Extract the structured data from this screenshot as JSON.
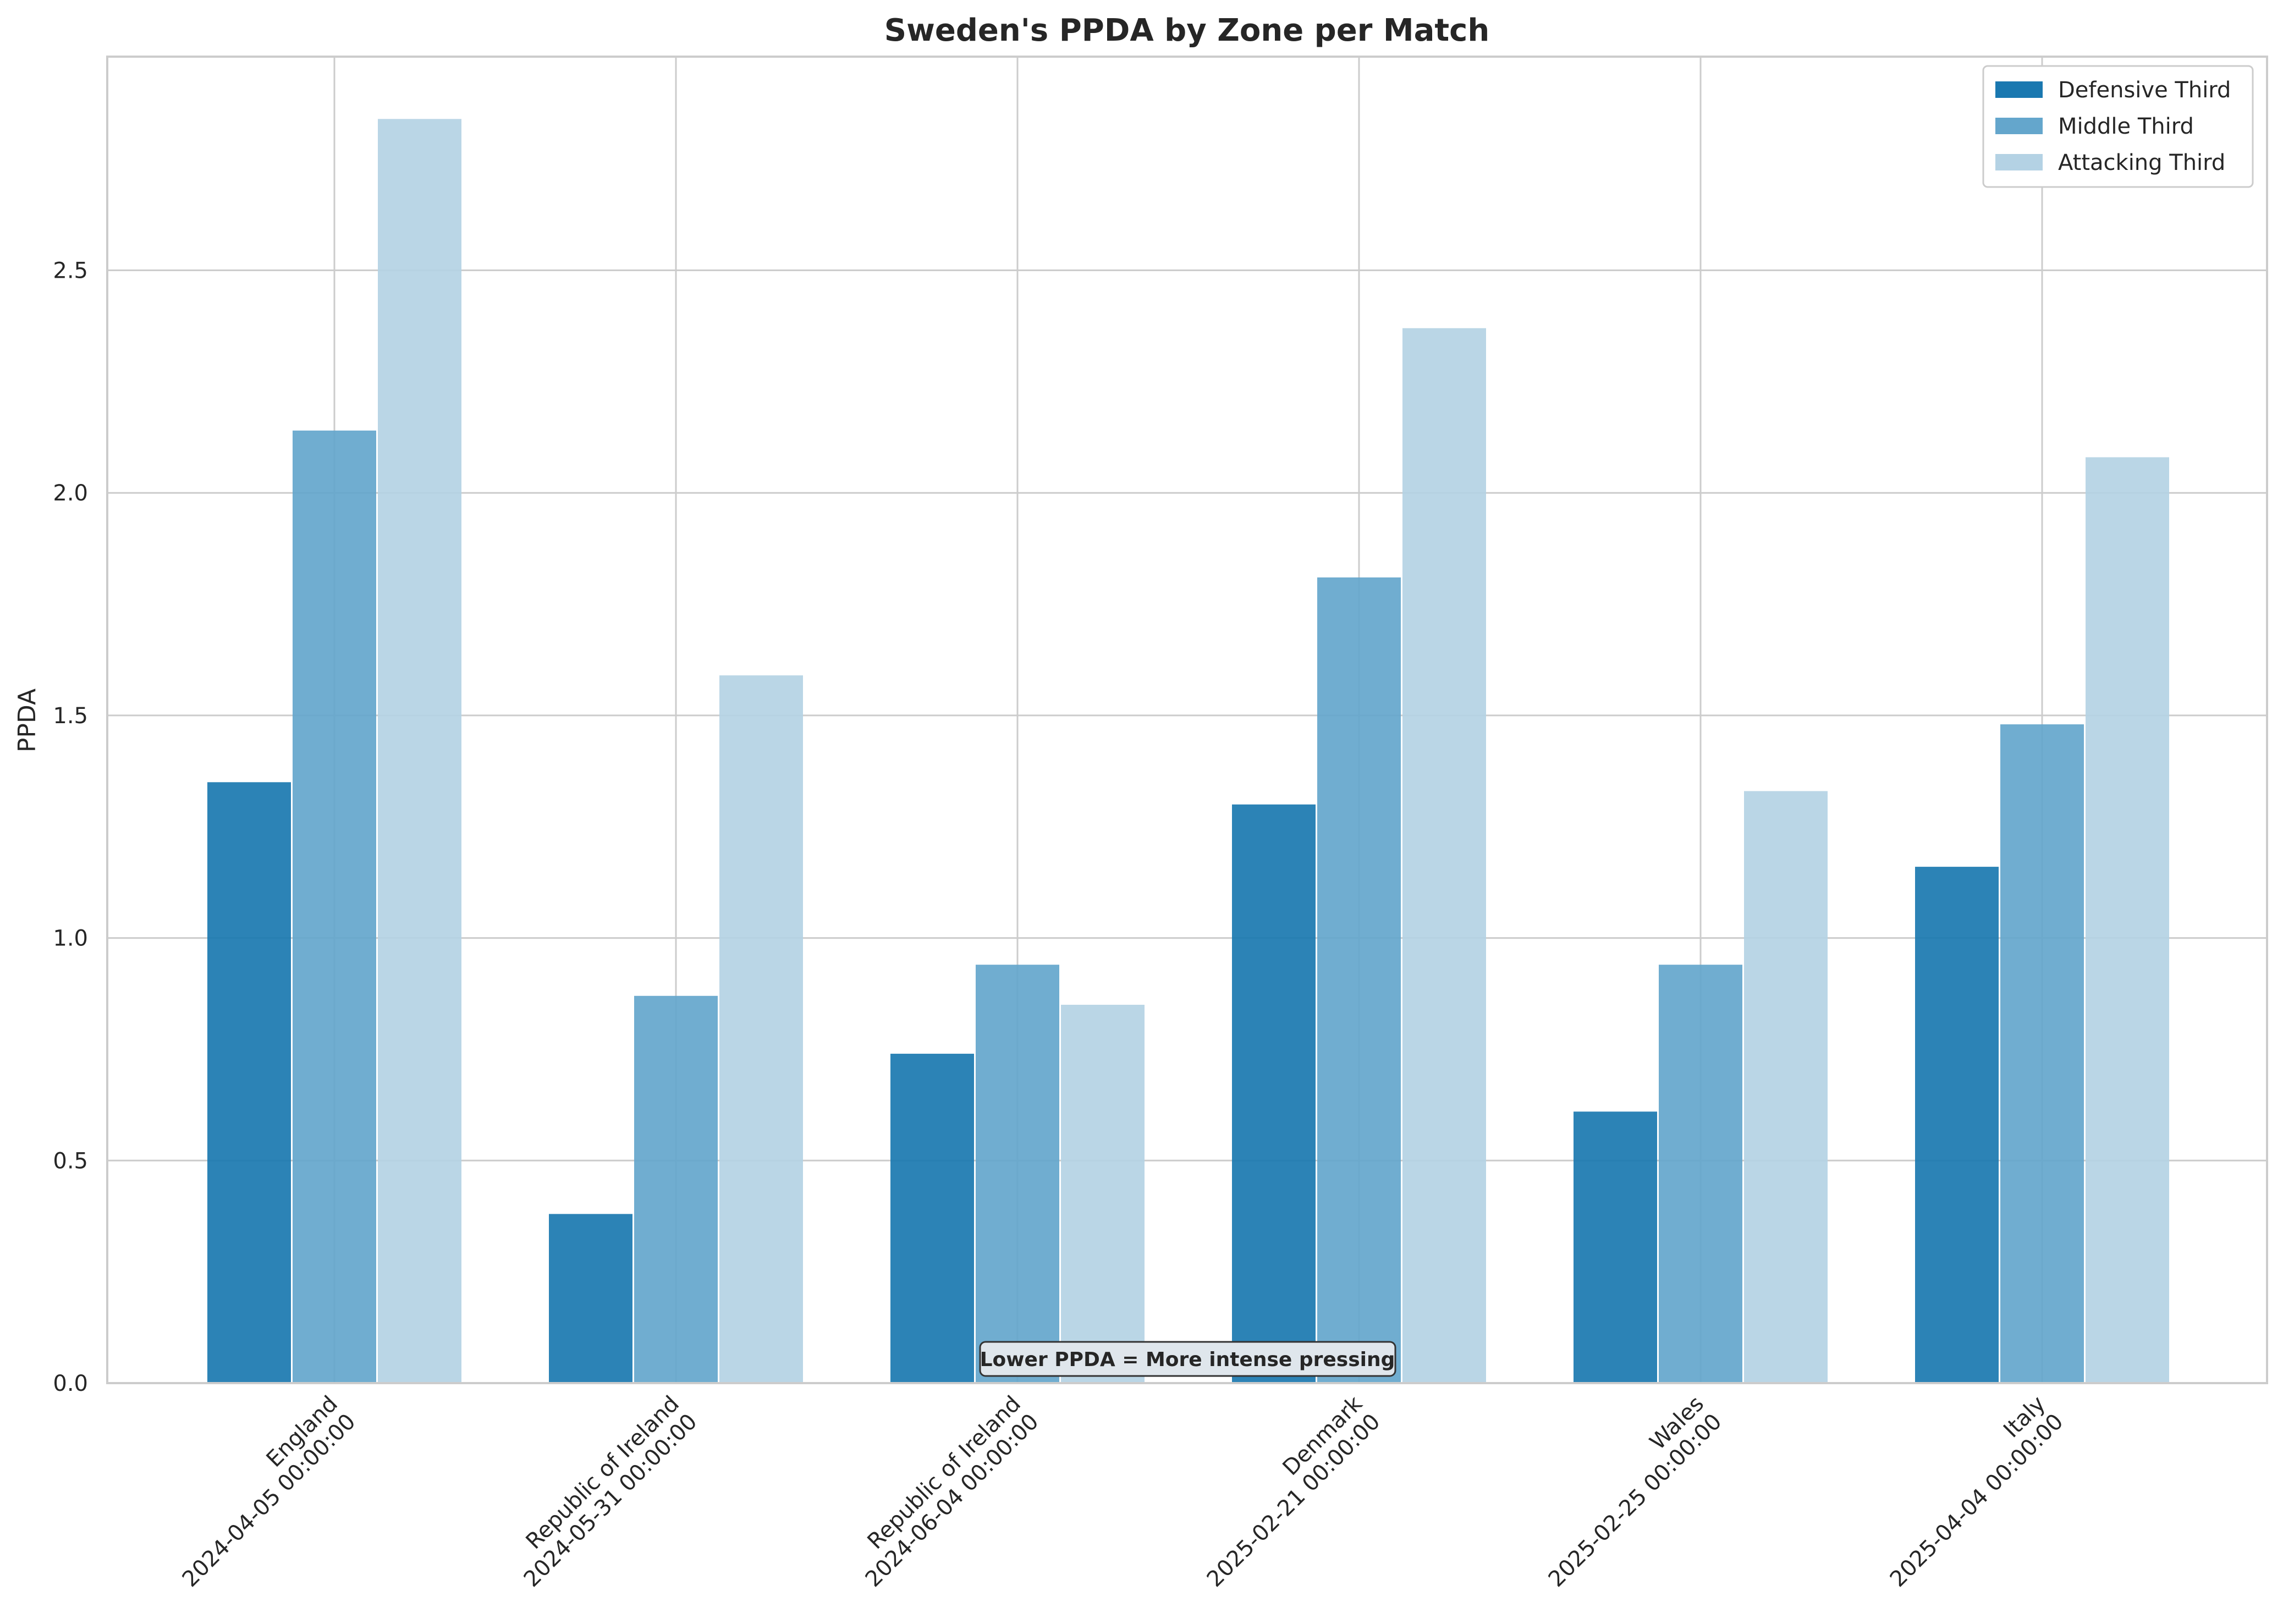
{
  "chart_data": {
    "type": "bar",
    "title": "Sweden's PPDA by Zone per Match",
    "xlabel": "",
    "ylabel": "PPDA",
    "ylim": [
      0,
      2.98
    ],
    "yticks": [
      "0.0",
      "0.5",
      "1.0",
      "1.5",
      "2.0",
      "2.5"
    ],
    "grid": true,
    "legend_position": "top-right",
    "categories": [
      [
        "England",
        "2024-04-05 00:00:00"
      ],
      [
        "Republic of Ireland",
        "2024-05-31 00:00:00"
      ],
      [
        "Republic of Ireland",
        "2024-06-04 00:00:00"
      ],
      [
        "Denmark",
        "2025-02-21 00:00:00"
      ],
      [
        "Wales",
        "2025-02-25 00:00:00"
      ],
      [
        "Italy",
        "2025-04-04 00:00:00"
      ]
    ],
    "series": [
      {
        "name": "Defensive Third",
        "color": "#1a78b0",
        "values": [
          1.35,
          0.38,
          0.74,
          1.3,
          0.61,
          1.16
        ]
      },
      {
        "name": "Middle Third",
        "color": "#64a6cc",
        "values": [
          2.14,
          0.87,
          0.94,
          1.81,
          0.94,
          1.48
        ]
      },
      {
        "name": "Attacking Third",
        "color": "#b4d2e4",
        "values": [
          2.84,
          1.59,
          0.85,
          2.37,
          1.33,
          2.08
        ]
      }
    ],
    "annotation": "Lower PPDA = More intense pressing"
  }
}
